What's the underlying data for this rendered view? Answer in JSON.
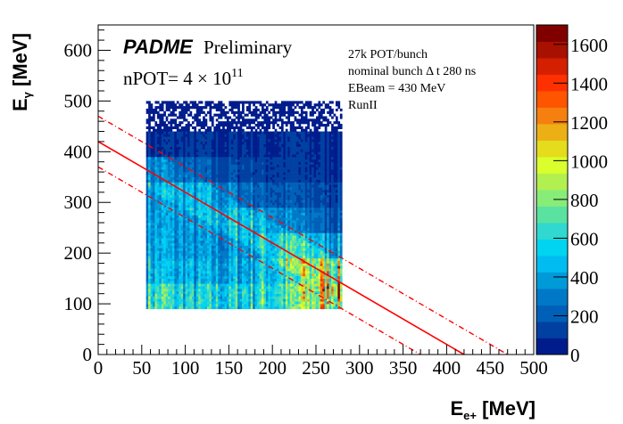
{
  "chart_data": {
    "type": "heatmap",
    "xlabel": "E",
    "xlabel_sub": "e+",
    "xlabel_unit": " [MeV]",
    "ylabel": "E",
    "ylabel_sub": "γ",
    "ylabel_unit": " [MeV]",
    "xlim": [
      0,
      500
    ],
    "ylim": [
      0,
      650
    ],
    "zlim": [
      0,
      1700
    ],
    "x_ticks": [
      0,
      50,
      100,
      150,
      200,
      250,
      300,
      350,
      400,
      450,
      500
    ],
    "y_ticks": [
      0,
      100,
      200,
      300,
      400,
      500,
      600
    ],
    "z_ticks": [
      0,
      200,
      400,
      600,
      800,
      1000,
      1200,
      1400,
      1600
    ],
    "x_bin_edges": [
      55,
      80,
      105,
      130,
      155,
      180,
      205,
      230,
      255,
      280
    ],
    "y_bin_edges": [
      90,
      140,
      190,
      240,
      290,
      340,
      390,
      440,
      500
    ],
    "z_values": [
      [
        600,
        550,
        500,
        500,
        550,
        600,
        650,
        800,
        900
      ],
      [
        450,
        400,
        380,
        380,
        420,
        500,
        550,
        650,
        700
      ],
      [
        400,
        350,
        320,
        330,
        380,
        420,
        450,
        450,
        400
      ],
      [
        380,
        350,
        330,
        350,
        380,
        350,
        300,
        250,
        200
      ],
      [
        350,
        330,
        300,
        280,
        250,
        200,
        170,
        150,
        130
      ],
      [
        250,
        200,
        180,
        150,
        130,
        110,
        100,
        90,
        90
      ],
      [
        80,
        80,
        80,
        80,
        80,
        80,
        80,
        80,
        80
      ],
      [
        20,
        20,
        20,
        20,
        20,
        20,
        20,
        20,
        20
      ]
    ],
    "lines": [
      {
        "style": "solid",
        "intercept": 420,
        "slope": -1,
        "color": "#ff0000"
      },
      {
        "style": "dash-dot",
        "intercept": 470,
        "slope": -1,
        "color": "#ff0000"
      },
      {
        "style": "dash-dot",
        "intercept": 370,
        "slope": -1,
        "color": "#ff0000"
      }
    ],
    "palette": [
      "#001c8c",
      "#0040a0",
      "#0060b8",
      "#0078c8",
      "#009ad8",
      "#00bcf0",
      "#00d4f0",
      "#30d8d0",
      "#5ae2a0",
      "#88ec78",
      "#b2f050",
      "#daff2c",
      "#e4dc1c",
      "#ecb016",
      "#f58010",
      "#fd5500",
      "#ff3000",
      "#d42000",
      "#a81000",
      "#800000"
    ],
    "annotations": {
      "logo": "PADME",
      "preliminary": "Preliminary",
      "npot_prefix": "nPOT= 4 × 10",
      "npot_exp": "11",
      "info": [
        "27k POT/bunch",
        "nominal bunch Δ t 280 ns",
        "EBeam = 430 MeV",
        "RunII"
      ]
    }
  }
}
